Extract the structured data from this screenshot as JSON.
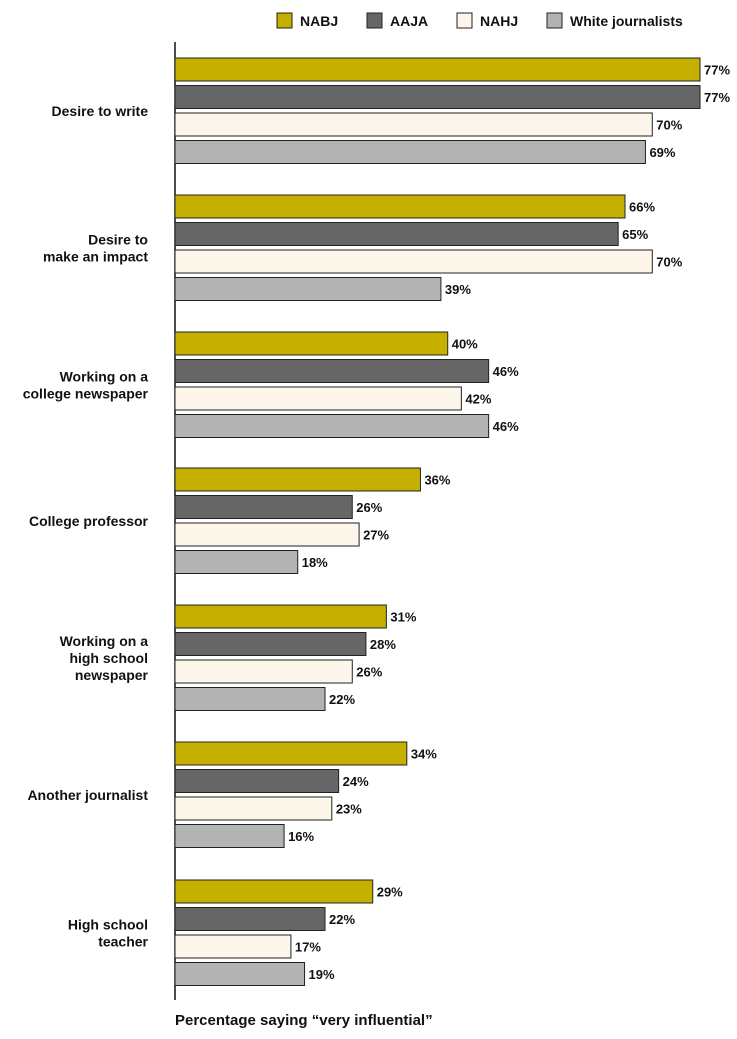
{
  "chart_data": {
    "type": "bar",
    "orientation": "horizontal",
    "title": "",
    "xlabel": "Percentage saying “very influential”",
    "ylabel": "",
    "categories": [
      "Desire to write",
      "Desire to make an impact",
      "Working on a college newspaper",
      "College professor",
      "Working on a high school newspaper",
      "Another journalist",
      "High school teacher"
    ],
    "category_lines": [
      [
        "Desire to write"
      ],
      [
        "Desire to",
        "make an impact"
      ],
      [
        "Working on a",
        "college newspaper"
      ],
      [
        "College professor"
      ],
      [
        "Working on a",
        "high school",
        "newspaper"
      ],
      [
        "Another journalist"
      ],
      [
        "High school",
        "teacher"
      ]
    ],
    "series": [
      {
        "name": "NABJ",
        "color": "#c5b000",
        "values": [
          77,
          66,
          40,
          36,
          31,
          34,
          29
        ]
      },
      {
        "name": "AAJA",
        "color": "#666666",
        "values": [
          77,
          65,
          46,
          26,
          28,
          24,
          22
        ]
      },
      {
        "name": "NAHJ",
        "color": "#fcf7ea",
        "values": [
          70,
          70,
          42,
          27,
          26,
          23,
          17
        ]
      },
      {
        "name": "White journalists",
        "color": "#b3b3b3",
        "values": [
          69,
          39,
          46,
          18,
          22,
          16,
          19
        ]
      }
    ],
    "value_suffix": "%",
    "xlim": [
      0,
      77
    ],
    "grid": false,
    "legend": "top"
  }
}
